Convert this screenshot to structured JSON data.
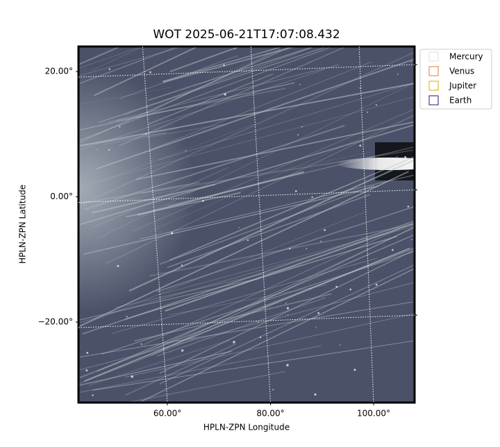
{
  "chart_data": {
    "type": "image",
    "title": "WOT 2025-06-21T17:07:08.432",
    "xlabel": "HPLN-ZPN Longitude",
    "ylabel": "HPLN-ZPN Latitude",
    "xlim": [
      42.75,
      107.95
    ],
    "ylim": [
      -32.85,
      24.0
    ],
    "xticks": [
      {
        "value": 60,
        "label": "60.00°"
      },
      {
        "value": 80,
        "label": "80.00°"
      },
      {
        "value": 100,
        "label": "100.00°"
      }
    ],
    "yticks": [
      {
        "value": -20,
        "label": "−20.00°"
      },
      {
        "value": 0,
        "label": "0.00°"
      },
      {
        "value": 20,
        "label": "20.00°"
      }
    ],
    "grid": true,
    "legend": "outside-right",
    "series": [
      {
        "name": "Mercury",
        "color": "#dddddd"
      },
      {
        "name": "Venus",
        "color": "#e07b39"
      },
      {
        "name": "Jupiter",
        "color": "#e0a800"
      },
      {
        "name": "Earth",
        "color": "#1a1a7a"
      }
    ]
  }
}
